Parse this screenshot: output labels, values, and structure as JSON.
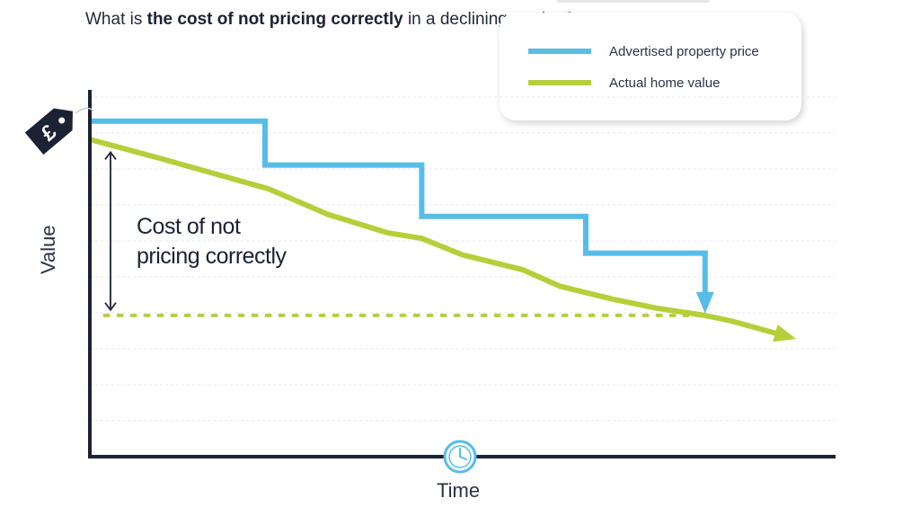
{
  "title": {
    "part1": "What is ",
    "bold": "the cost of not pricing correctly",
    "part2": " in a declining market?"
  },
  "legend": {
    "items": [
      {
        "label": "Advertised property price",
        "color": "#56bde8"
      },
      {
        "label": "Actual home value",
        "color": "#b5cf3a"
      }
    ]
  },
  "annotation": {
    "line1": "Cost of not",
    "line2": "pricing correctly"
  },
  "icons": {
    "price_tag": "pound-price-tag-icon",
    "clock": "clock-icon",
    "tag_symbol": "£"
  },
  "colors": {
    "advertised": "#56bde8",
    "actual": "#b5cf3a",
    "axis": "#1a2233",
    "annotation": "#1a2233"
  },
  "chart_data": {
    "type": "line",
    "title": "What is the cost of not pricing correctly in a declining market?",
    "xlabel": "Time",
    "ylabel": "Value",
    "xlim": [
      0,
      100
    ],
    "ylim": [
      0,
      100
    ],
    "grid": true,
    "legend_position": "top-right",
    "series": [
      {
        "name": "Advertised property price",
        "style": "step",
        "x": [
          0,
          23.5,
          23.5,
          44.5,
          44.5,
          66.5,
          66.5,
          82.5,
          82.5
        ],
        "y": [
          91.5,
          91.5,
          79.5,
          79.5,
          65.5,
          65.5,
          55.5,
          55.5,
          40.5
        ]
      },
      {
        "name": "Actual home value",
        "style": "line",
        "x": [
          0,
          10,
          24,
          32,
          40,
          44.5,
          50,
          58,
          63,
          70,
          76,
          82.5,
          86,
          94
        ],
        "y": [
          86.5,
          81,
          73,
          66,
          61,
          59.5,
          55,
          51,
          46.5,
          43,
          40.5,
          38.5,
          37,
          32.5
        ]
      }
    ],
    "annotations": [
      {
        "text": "Cost of not pricing correctly",
        "type": "double-arrow",
        "y_from": 40.5,
        "y_to": 83
      },
      {
        "type": "dotted-reference-line",
        "y": 38.5,
        "x_from": 2,
        "x_to": 82.5
      }
    ]
  }
}
